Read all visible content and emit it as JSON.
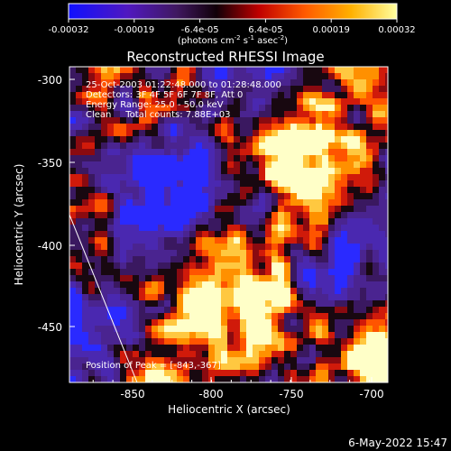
{
  "colorbar": {
    "ticks": [
      "-0.00032",
      "-0.00019",
      "-6.4e-05",
      "6.4e-05",
      "0.00019",
      "0.00032"
    ],
    "units_prefix": "(photons cm",
    "units_exp1": "-2",
    "units_mid": " s",
    "units_exp2": "-1",
    "units_mid2": " asec",
    "units_exp3": "-2",
    "units_suffix": ")"
  },
  "plot": {
    "title": "Reconstructed RHESSI Image",
    "xlabel": "Heliocentric X (arcsec)",
    "ylabel": "Heliocentric Y (arcsec)",
    "xticks": [
      "-850",
      "-800",
      "-750",
      "-700"
    ],
    "yticks": [
      "-300",
      "-350",
      "-400",
      "-450"
    ],
    "annotations": [
      "25-Oct-2003 01:22:48.000 to 01:28:48.000",
      "Detectors: 3F 4F 5F 6F 7F 8F, Att 0",
      "Energy Range: 25.0 - 50.0 keV",
      "Clean     Total counts: 7.88E+03"
    ],
    "peak": "Position of Peak = [-843,-367]"
  },
  "footer": {
    "timestamp": "6-May-2022 15:47"
  },
  "colors": {
    "background": "#000000",
    "foreground": "#ffffff",
    "cmap": [
      "#2020ff",
      "#3a1aa0",
      "#4a2a90",
      "#5a1a70",
      "#1a0a10",
      "#b01010",
      "#ff5000",
      "#ff9000",
      "#ffd040",
      "#ffffff"
    ]
  }
}
